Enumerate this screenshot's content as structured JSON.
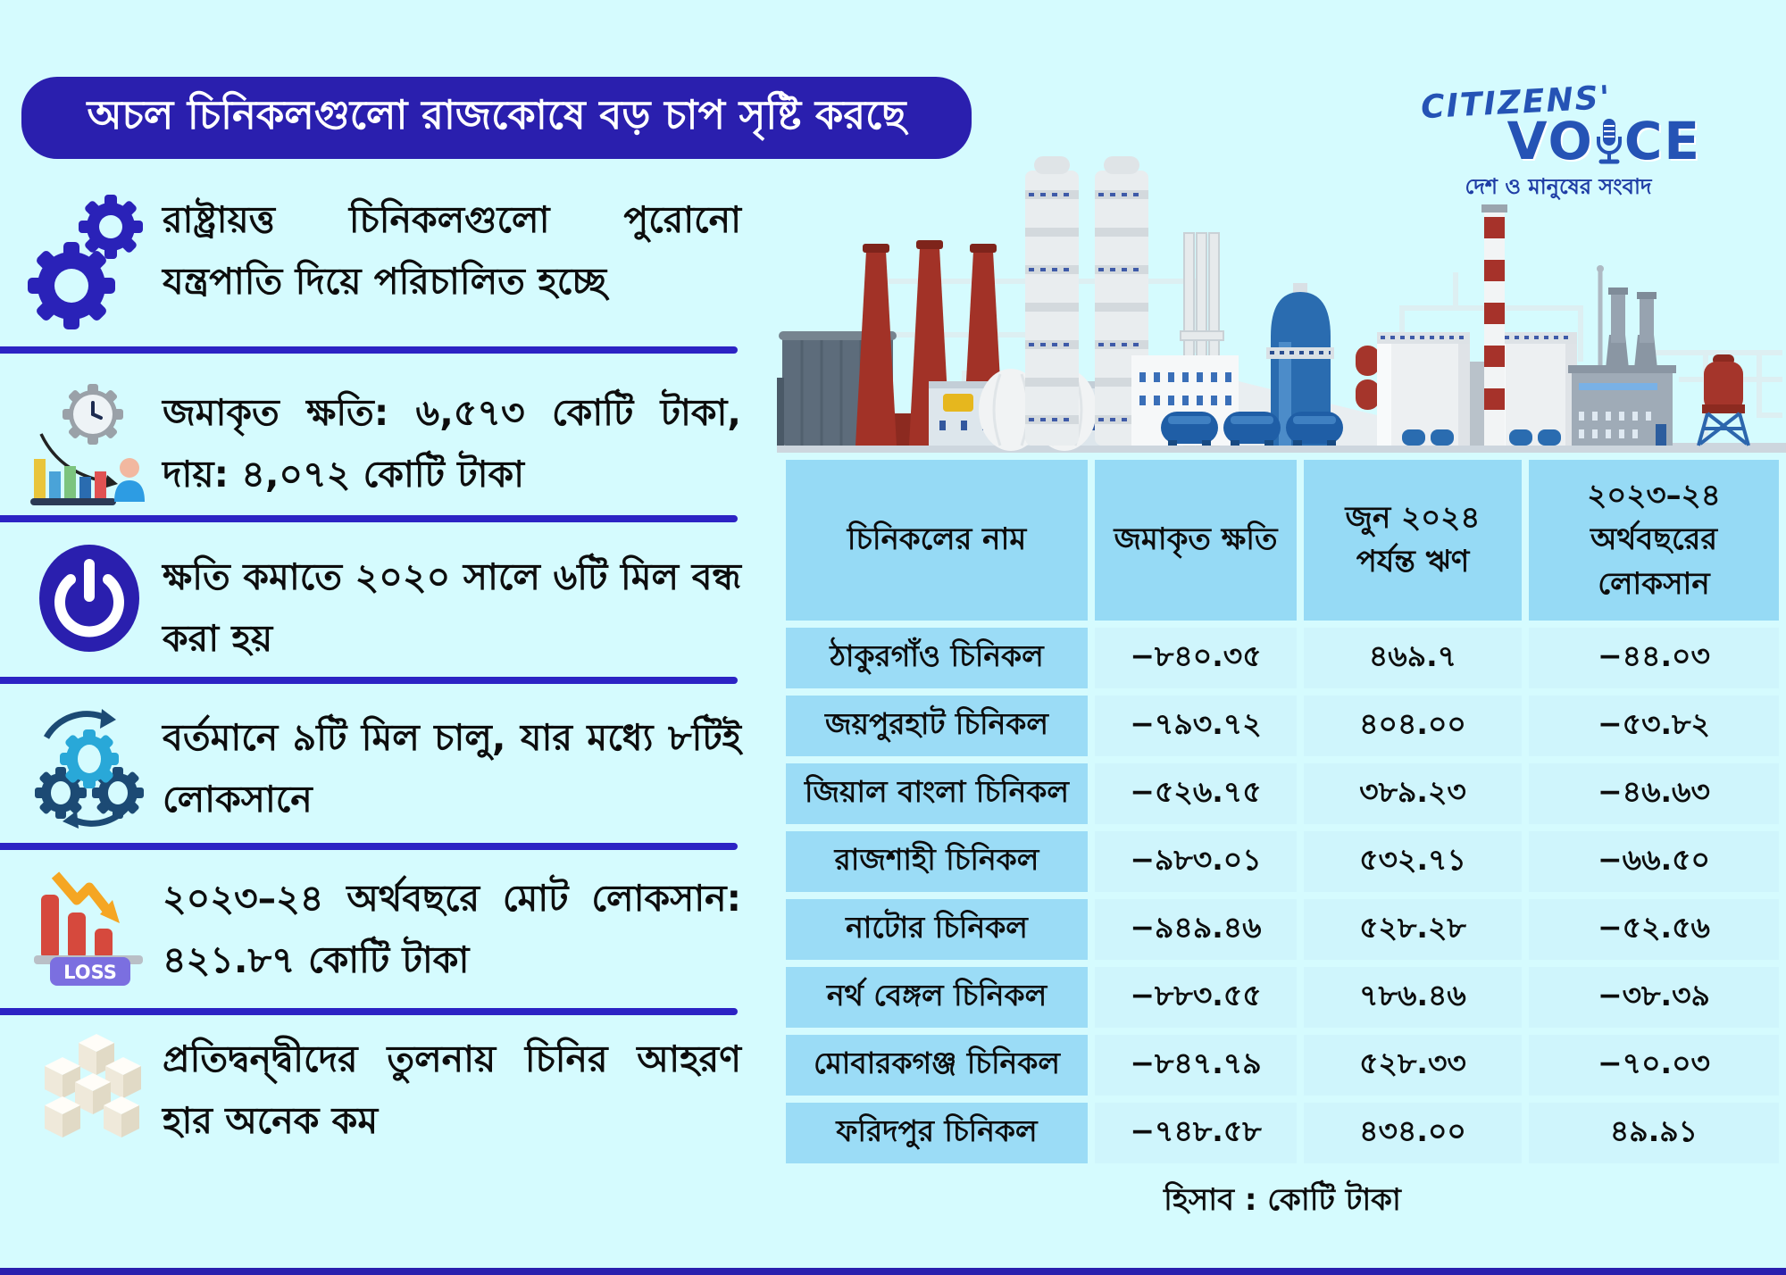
{
  "title": "অচল চিনিকলগুলো রাজকোষে বড় চাপ সৃষ্টি করছে",
  "logo": {
    "brand_top": "CITIZENS'",
    "brand_word_pre": "VO",
    "brand_word_post": "CE",
    "tagline": "দেশ ও মানুষের সংবাদ"
  },
  "bullets": [
    {
      "icon": "gears-icon",
      "text": "রাষ্ট্রায়ত্ত চিনিকলগুলো পুরোনো যন্ত্রপাতি দিয়ে পরিচালিত হচ্ছে"
    },
    {
      "icon": "accumulated-loss-icon",
      "text": "জমাকৃত ক্ষতি: ৬,৫৭৩ কোটি টাকা, দায়: ৪,০৭২ কোটি টাকা"
    },
    {
      "icon": "power-off-icon",
      "text": "ক্ষতি কমাতে ২০২০ সালে ৬টি মিল বন্ধ করা হয়"
    },
    {
      "icon": "running-gears-icon",
      "text": "বর্তমানে ৯টি মিল চালু, যার মধ্যে ৮টিই লোকসানে"
    },
    {
      "icon": "loss-chart-icon",
      "text": "২০২৩–২৪ অর্থবছরে মোট লোকসান: ৪২১.৮৭ কোটি টাকা"
    },
    {
      "icon": "sugar-cubes-icon",
      "text": "প্রতিদ্বন্দ্বীদের তুলনায় চিনির আহরণ হার অনেক কম"
    }
  ],
  "loss_tag_label": "LOSS",
  "chart_data": {
    "type": "table",
    "title": "অচল চিনিকলগুলো রাজকোষে বড় চাপ সৃষ্টি করছে",
    "columns": [
      "চিনিকলের নাম",
      "জমাকৃত ক্ষতি",
      "জুন ২০২৪ পর্যন্ত ঋণ",
      "২০২৩–২৪ অর্থবছরের লোকসান"
    ],
    "rows": [
      [
        "ঠাকুরগাঁও চিনিকল",
        "−৮৪০.৩৫",
        "৪৬৯.৭",
        "−৪৪.০৩"
      ],
      [
        "জয়পুরহাট চিনিকল",
        "−৭৯৩.৭২",
        "৪০৪.০০",
        "−৫৩.৮২"
      ],
      [
        "জিয়াল বাংলা চিনিকল",
        "−৫২৬.৭৫",
        "৩৮৯.২৩",
        "−৪৬.৬৩"
      ],
      [
        "রাজশাহী চিনিকল",
        "−৯৮৩.০১",
        "৫৩২.৭১",
        "−৬৬.৫০"
      ],
      [
        "নাটোর চিনিকল",
        "−৯৪৯.৪৬",
        "৫২৮.২৮",
        "−৫২.৫৬"
      ],
      [
        "নর্থ বেঙ্গল চিনিকল",
        "−৮৮৩.৫৫",
        "৭৮৬.৪৬",
        "−৩৮.৩৯"
      ],
      [
        "মোবারকগঞ্জ চিনিকল",
        "−৮৪৭.৭৯",
        "৫২৮.৩৩",
        "−৭০.০৩"
      ],
      [
        "ফরিদপুর চিনিকল",
        "−৭৪৮.৫৮",
        "৪৩৪.০০",
        "৪৯.৯১"
      ]
    ],
    "unit_note": "হিসাব : কোটি টাকা"
  },
  "colors": {
    "background": "#d5fbfe",
    "title_bar": "#2a1fae",
    "separator": "#2c23c4",
    "table_header_bg": "#96daf5",
    "table_name_bg": "#9bdcf6",
    "table_value_bg": "#cff5fc",
    "logo_blue": "#2553b5",
    "chimney_red": "#a23227"
  }
}
